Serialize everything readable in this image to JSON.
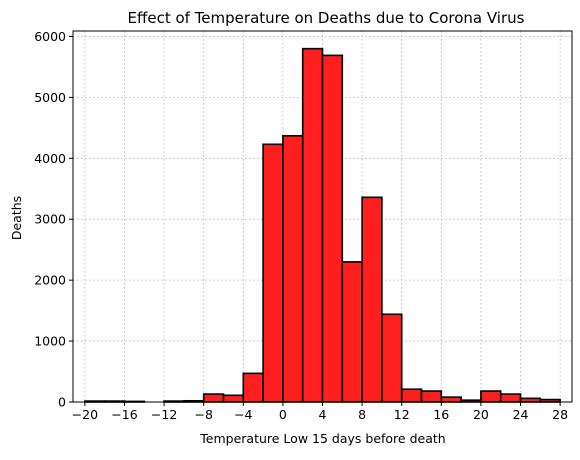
{
  "chart_data": {
    "type": "bar",
    "title": "Effect of Temperature on Deaths due to Corona Virus",
    "xlabel": "Temperature Low 15 days before death",
    "ylabel": "Deaths",
    "bin_width": 2,
    "bins": [
      {
        "x0": -20,
        "x1": -18,
        "value": 15
      },
      {
        "x0": -18,
        "x1": -16,
        "value": 15
      },
      {
        "x0": -16,
        "x1": -14,
        "value": 10
      },
      {
        "x0": -14,
        "x1": -12,
        "value": 0
      },
      {
        "x0": -12,
        "x1": -10,
        "value": 15
      },
      {
        "x0": -10,
        "x1": -8,
        "value": 20
      },
      {
        "x0": -8,
        "x1": -6,
        "value": 130
      },
      {
        "x0": -6,
        "x1": -4,
        "value": 110
      },
      {
        "x0": -4,
        "x1": -2,
        "value": 470
      },
      {
        "x0": -2,
        "x1": 0,
        "value": 4230
      },
      {
        "x0": 0,
        "x1": 2,
        "value": 4370
      },
      {
        "x0": 2,
        "x1": 4,
        "value": 5800
      },
      {
        "x0": 4,
        "x1": 6,
        "value": 5690
      },
      {
        "x0": 6,
        "x1": 8,
        "value": 2300
      },
      {
        "x0": 8,
        "x1": 10,
        "value": 3360
      },
      {
        "x0": 10,
        "x1": 12,
        "value": 1440
      },
      {
        "x0": 12,
        "x1": 14,
        "value": 210
      },
      {
        "x0": 14,
        "x1": 16,
        "value": 180
      },
      {
        "x0": 16,
        "x1": 18,
        "value": 80
      },
      {
        "x0": 18,
        "x1": 20,
        "value": 30
      },
      {
        "x0": 20,
        "x1": 22,
        "value": 180
      },
      {
        "x0": 22,
        "x1": 24,
        "value": 130
      },
      {
        "x0": 24,
        "x1": 26,
        "value": 60
      },
      {
        "x0": 26,
        "x1": 28,
        "value": 40
      }
    ],
    "xlim": [
      -21.2,
      29.2
    ],
    "ylim": [
      0,
      6090
    ],
    "x_ticks": [
      -20,
      -16,
      -12,
      -8,
      -4,
      0,
      4,
      8,
      12,
      16,
      20,
      24,
      28
    ],
    "x_tick_labels": [
      "−20",
      "−16",
      "−12",
      "−8",
      "−4",
      "0",
      "4",
      "8",
      "12",
      "16",
      "20",
      "24",
      "28"
    ],
    "y_ticks": [
      0,
      1000,
      2000,
      3000,
      4000,
      5000,
      6000
    ],
    "y_tick_labels": [
      "0",
      "1000",
      "2000",
      "3000",
      "4000",
      "5000",
      "6000"
    ],
    "grid": true,
    "colors": {
      "bar_fill": "#ff1f1f",
      "bar_edge": "#000000",
      "grid": "#b0b0b0"
    }
  }
}
